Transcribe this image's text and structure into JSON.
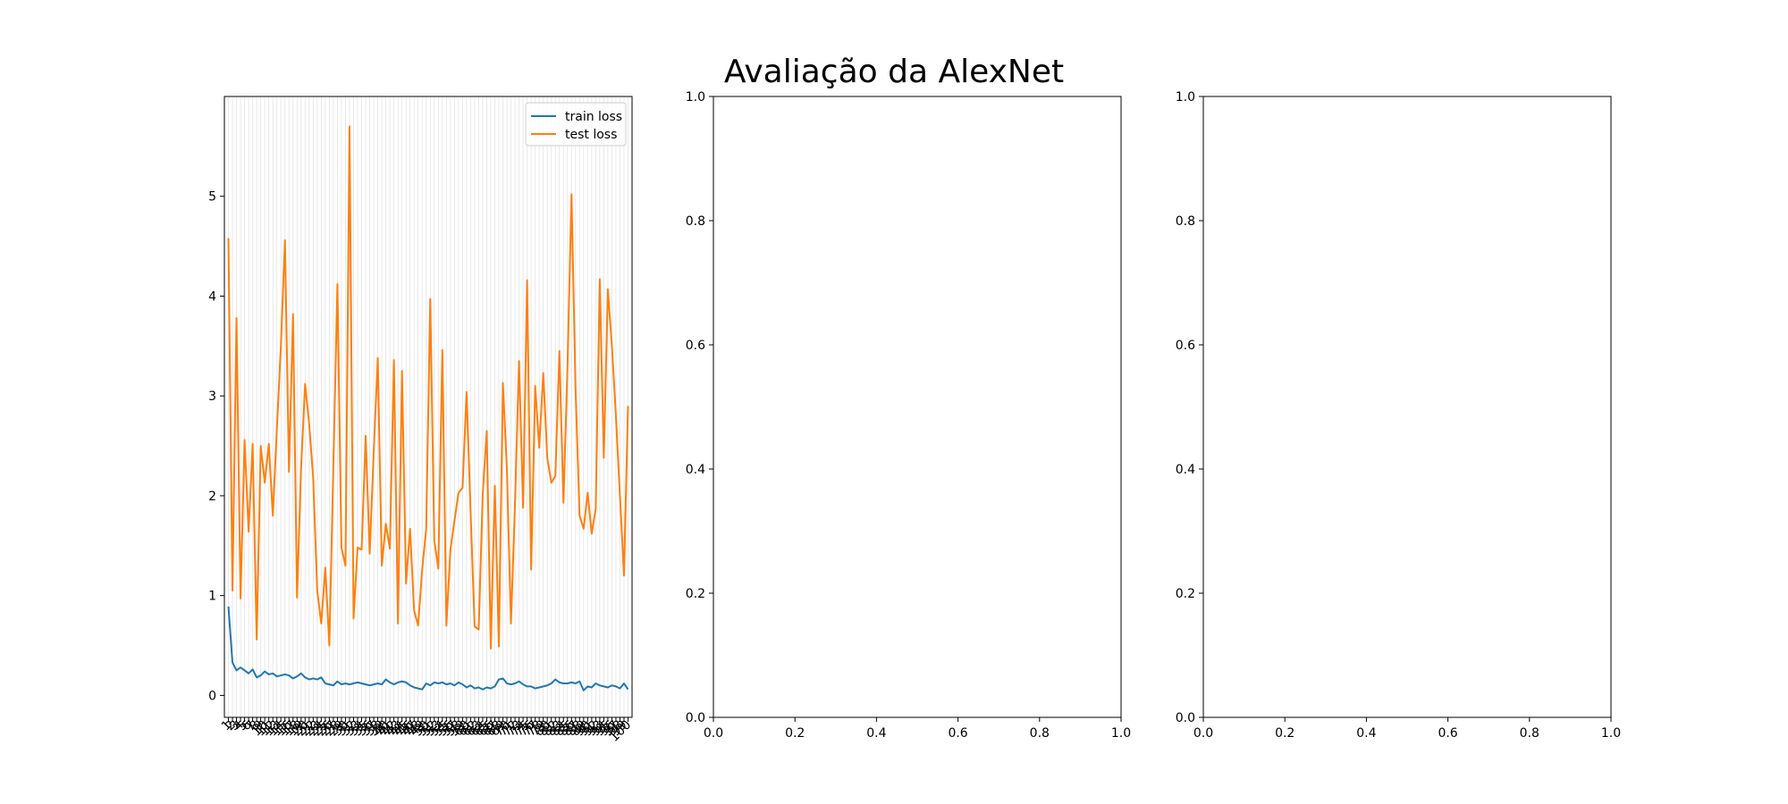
{
  "figure": {
    "title": "Avaliação da AlexNet"
  },
  "chart_data": [
    {
      "type": "line",
      "title": "",
      "xlabel": "",
      "ylabel": "",
      "grid": "vertical",
      "legend": "upper right",
      "xlim": [
        0,
        101
      ],
      "ylim": [
        -0.22,
        6.0
      ],
      "yticks": [
        0,
        1,
        2,
        3,
        4,
        5
      ],
      "xticks": [
        1,
        2,
        3,
        4,
        5,
        6,
        7,
        8,
        9,
        10,
        11,
        12,
        13,
        14,
        15,
        16,
        17,
        18,
        19,
        20,
        21,
        22,
        23,
        24,
        25,
        26,
        27,
        28,
        29,
        30,
        31,
        32,
        33,
        34,
        35,
        36,
        37,
        38,
        39,
        40,
        41,
        42,
        43,
        44,
        45,
        46,
        47,
        48,
        49,
        50,
        51,
        52,
        53,
        54,
        55,
        56,
        57,
        58,
        59,
        60,
        61,
        62,
        63,
        64,
        65,
        66,
        67,
        68,
        69,
        70,
        71,
        72,
        73,
        74,
        75,
        76,
        77,
        78,
        79,
        80,
        81,
        82,
        83,
        84,
        85,
        86,
        87,
        88,
        89,
        90,
        91,
        92,
        93,
        94,
        95,
        96,
        97,
        98,
        99,
        100
      ],
      "series": [
        {
          "name": "train loss",
          "color": "#1f77b4",
          "values": [
            0.89,
            0.33,
            0.25,
            0.28,
            0.25,
            0.22,
            0.26,
            0.18,
            0.2,
            0.24,
            0.21,
            0.22,
            0.19,
            0.2,
            0.21,
            0.2,
            0.17,
            0.19,
            0.22,
            0.18,
            0.16,
            0.17,
            0.16,
            0.18,
            0.12,
            0.11,
            0.1,
            0.14,
            0.11,
            0.12,
            0.11,
            0.12,
            0.13,
            0.12,
            0.11,
            0.1,
            0.11,
            0.12,
            0.11,
            0.16,
            0.13,
            0.11,
            0.13,
            0.14,
            0.13,
            0.1,
            0.08,
            0.07,
            0.06,
            0.12,
            0.1,
            0.13,
            0.12,
            0.13,
            0.11,
            0.12,
            0.1,
            0.13,
            0.11,
            0.08,
            0.1,
            0.07,
            0.08,
            0.06,
            0.08,
            0.07,
            0.09,
            0.16,
            0.17,
            0.12,
            0.11,
            0.12,
            0.14,
            0.11,
            0.09,
            0.09,
            0.07,
            0.08,
            0.09,
            0.1,
            0.12,
            0.16,
            0.13,
            0.12,
            0.12,
            0.13,
            0.12,
            0.14,
            0.05,
            0.09,
            0.08,
            0.12,
            0.1,
            0.09,
            0.08,
            0.1,
            0.09,
            0.07,
            0.12,
            0.06
          ]
        },
        {
          "name": "test loss",
          "color": "#ff7f0e",
          "values": [
            4.58,
            1.05,
            3.78,
            0.97,
            2.56,
            1.64,
            2.52,
            0.56,
            2.5,
            2.13,
            2.52,
            1.8,
            2.67,
            3.5,
            4.56,
            2.24,
            3.82,
            0.98,
            2.28,
            3.12,
            2.72,
            2.18,
            1.05,
            0.72,
            1.28,
            0.5,
            2.3,
            4.12,
            1.48,
            1.3,
            5.7,
            0.77,
            1.48,
            1.46,
            2.6,
            1.42,
            2.44,
            3.38,
            1.3,
            1.72,
            1.47,
            3.36,
            0.72,
            3.25,
            1.12,
            1.67,
            0.85,
            0.7,
            1.26,
            1.67,
            3.97,
            1.55,
            1.27,
            3.46,
            0.7,
            1.46,
            1.75,
            2.03,
            2.08,
            3.04,
            1.83,
            0.69,
            0.66,
            2.01,
            2.65,
            0.47,
            2.1,
            0.49,
            3.13,
            2.26,
            0.72,
            1.92,
            3.35,
            1.88,
            4.16,
            1.26,
            3.1,
            2.48,
            3.23,
            2.38,
            2.13,
            2.2,
            3.45,
            1.93,
            3.28,
            5.02,
            3.07,
            1.8,
            1.67,
            2.03,
            1.62,
            1.87,
            4.17,
            2.38,
            4.07,
            3.5,
            2.8,
            2.0,
            1.2,
            2.9
          ]
        }
      ]
    },
    {
      "type": "line",
      "title": "",
      "xlabel": "",
      "ylabel": "",
      "xlim": [
        0.0,
        1.0
      ],
      "ylim": [
        0.0,
        1.0
      ],
      "xticks": [
        "0.0",
        "0.2",
        "0.4",
        "0.6",
        "0.8",
        "1.0"
      ],
      "yticks": [
        "0.0",
        "0.2",
        "0.4",
        "0.6",
        "0.8",
        "1.0"
      ],
      "series": []
    },
    {
      "type": "line",
      "title": "",
      "xlabel": "",
      "ylabel": "",
      "xlim": [
        0.0,
        1.0
      ],
      "ylim": [
        0.0,
        1.0
      ],
      "xticks": [
        "0.0",
        "0.2",
        "0.4",
        "0.6",
        "0.8",
        "1.0"
      ],
      "yticks": [
        "0.0",
        "0.2",
        "0.4",
        "0.6",
        "0.8",
        "1.0"
      ],
      "series": []
    }
  ]
}
